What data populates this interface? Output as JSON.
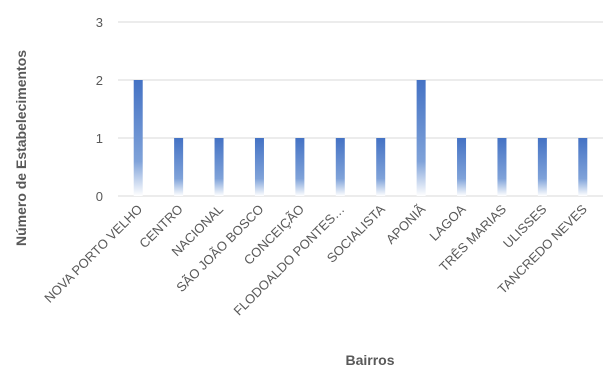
{
  "chart_data": {
    "type": "bar",
    "title": "",
    "xlabel": "Bairros",
    "ylabel": "Número de Estabelecimentos",
    "categories": [
      "NOVA PORTO VELHO",
      "CENTRO",
      "NACIONAL",
      "SÃO JOÃO BOSCO",
      "CONCEIÇÃO",
      "FLODOALDO PONTES…",
      "SOCIALISTA",
      "APONIÃ",
      "LAGOA",
      "TRÊS MARIAS",
      "ULISSES",
      "TANCREDO NEVES"
    ],
    "values": [
      2,
      1,
      1,
      1,
      1,
      1,
      1,
      2,
      1,
      1,
      1,
      1
    ],
    "ylim": [
      0,
      3
    ],
    "yticks": [
      "0",
      "1",
      "2",
      "3"
    ],
    "grid": true,
    "legend": "none",
    "colors": {
      "bar_top": "#4472C4",
      "bar_bottom": "#ffffff",
      "grid": "#d9d9d9",
      "text": "#595959"
    }
  }
}
